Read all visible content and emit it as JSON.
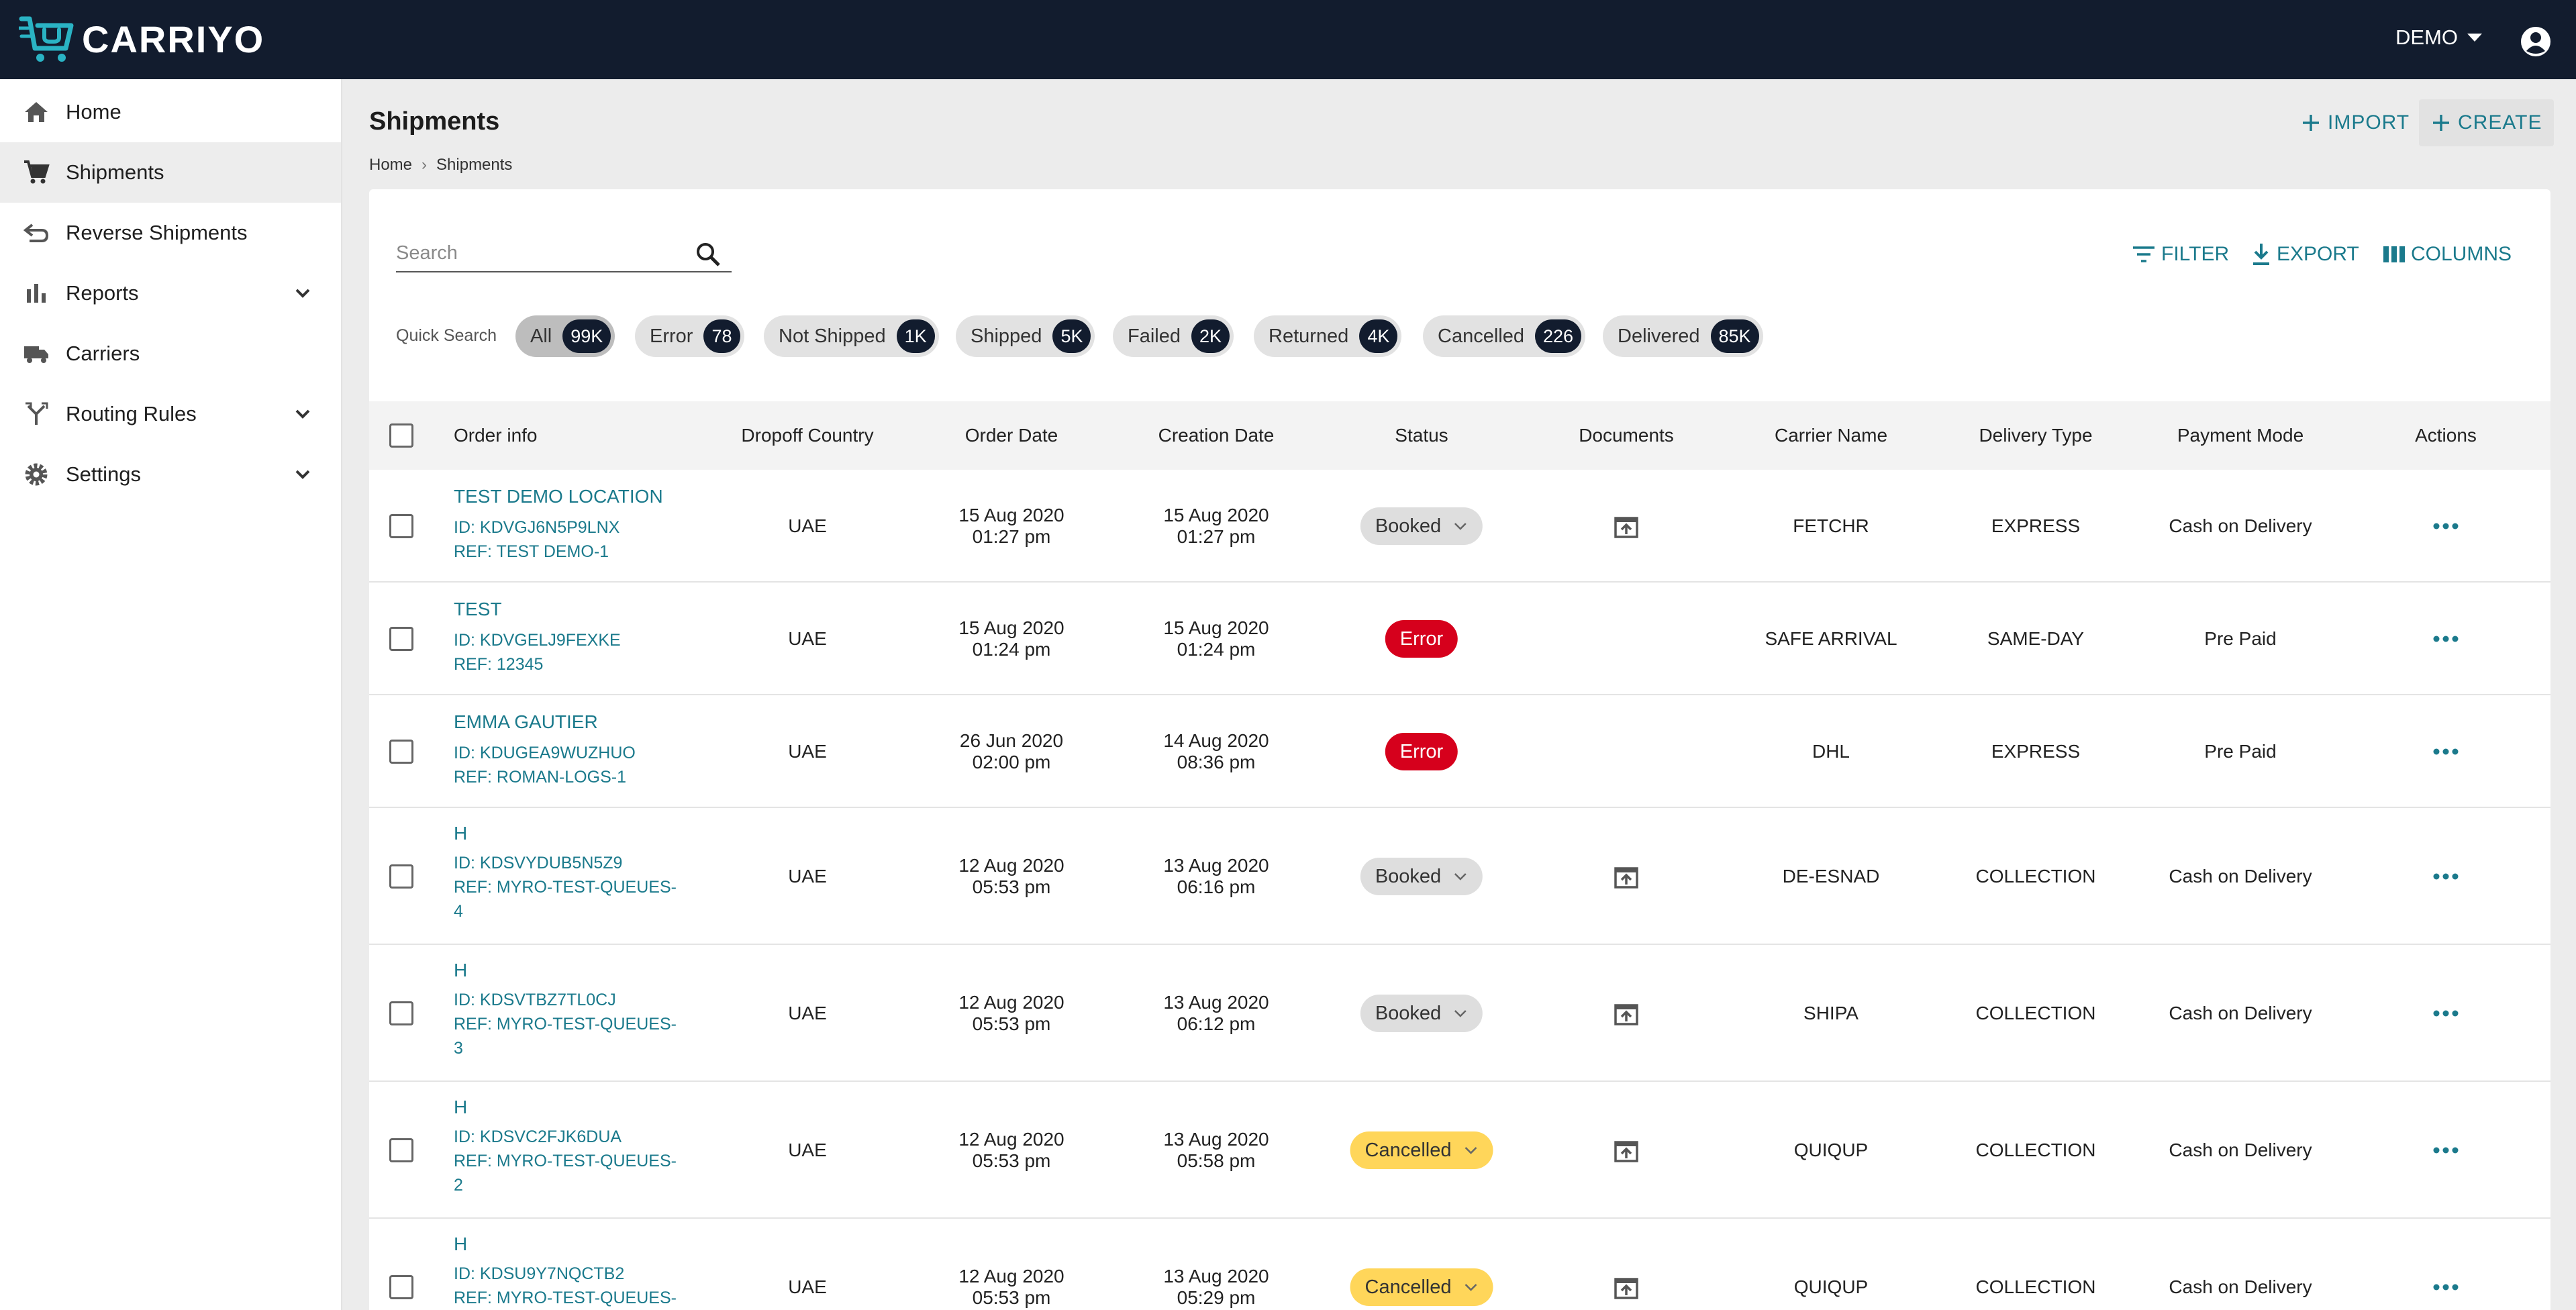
{
  "app": {
    "brand": "CARRIYO",
    "account": "DEMO"
  },
  "colors": {
    "topbar": "#121c2e",
    "accent": "#1b7a8c",
    "error": "#d6001c",
    "cancelled": "#ffd65a",
    "booked": "#dedede"
  },
  "sidebar": {
    "items": [
      {
        "label": "Home",
        "icon": "home-icon"
      },
      {
        "label": "Shipments",
        "icon": "cart-icon",
        "active": true
      },
      {
        "label": "Reverse Shipments",
        "icon": "reverse-icon"
      },
      {
        "label": "Reports",
        "icon": "bar-chart-icon",
        "expandable": true
      },
      {
        "label": "Carriers",
        "icon": "truck-icon"
      },
      {
        "label": "Routing Rules",
        "icon": "routing-icon",
        "expandable": true
      },
      {
        "label": "Settings",
        "icon": "gear-icon",
        "expandable": true
      }
    ]
  },
  "header": {
    "title": "Shipments",
    "breadcrumb": [
      "Home",
      "Shipments"
    ],
    "import_label": "IMPORT",
    "create_label": "CREATE"
  },
  "toolbar": {
    "search_placeholder": "Search",
    "filter_label": "FILTER",
    "export_label": "EXPORT",
    "columns_label": "COLUMNS"
  },
  "quick_search": {
    "label": "Quick Search",
    "chips": [
      {
        "label": "All",
        "count": "99K",
        "active": true
      },
      {
        "label": "Error",
        "count": "78"
      },
      {
        "label": "Not Shipped",
        "count": "1K"
      },
      {
        "label": "Shipped",
        "count": "5K"
      },
      {
        "label": "Failed",
        "count": "2K"
      },
      {
        "label": "Returned",
        "count": "4K"
      },
      {
        "label": "Cancelled",
        "count": "226"
      },
      {
        "label": "Delivered",
        "count": "85K"
      }
    ]
  },
  "table": {
    "columns": [
      "Order info",
      "Dropoff Country",
      "Order Date",
      "Creation Date",
      "Status",
      "Documents",
      "Carrier Name",
      "Delivery Type",
      "Payment Mode",
      "Actions"
    ],
    "rows": [
      {
        "name": "TEST DEMO LOCATION",
        "id": "ID: KDVGJ6N5P9LNX",
        "ref": "REF: TEST DEMO-1",
        "country": "UAE",
        "order_date": "15 Aug 2020",
        "order_time": "01:27 pm",
        "creation_date": "15 Aug 2020",
        "creation_time": "01:27 pm",
        "status": "Booked",
        "has_doc": true,
        "carrier": "FETCHR",
        "delivery": "EXPRESS",
        "payment": "Cash on Delivery"
      },
      {
        "name": "TEST",
        "id": "ID: KDVGELJ9FEXKE",
        "ref": "REF: 12345",
        "country": "UAE",
        "order_date": "15 Aug 2020",
        "order_time": "01:24 pm",
        "creation_date": "15 Aug 2020",
        "creation_time": "01:24 pm",
        "status": "Error",
        "has_doc": false,
        "carrier": "SAFE ARRIVAL",
        "delivery": "SAME-DAY",
        "payment": "Pre Paid"
      },
      {
        "name": "EMMA GAUTIER",
        "id": "ID: KDUGEA9WUZHUO",
        "ref": "REF: ROMAN-LOGS-1",
        "country": "UAE",
        "order_date": "26 Jun 2020",
        "order_time": "02:00 pm",
        "creation_date": "14 Aug 2020",
        "creation_time": "08:36 pm",
        "status": "Error",
        "has_doc": false,
        "carrier": "DHL",
        "delivery": "EXPRESS",
        "payment": "Pre Paid"
      },
      {
        "name": "H",
        "id": "ID: KDSVYDUB5N5Z9",
        "ref": "REF: MYRO-TEST-QUEUES-",
        "ref2": "4",
        "country": "UAE",
        "order_date": "12 Aug 2020",
        "order_time": "05:53 pm",
        "creation_date": "13 Aug 2020",
        "creation_time": "06:16 pm",
        "status": "Booked",
        "has_doc": true,
        "carrier": "DE-ESNAD",
        "delivery": "COLLECTION",
        "payment": "Cash on Delivery"
      },
      {
        "name": "H",
        "id": "ID: KDSVTBZ7TL0CJ",
        "ref": "REF: MYRO-TEST-QUEUES-",
        "ref2": "3",
        "country": "UAE",
        "order_date": "12 Aug 2020",
        "order_time": "05:53 pm",
        "creation_date": "13 Aug 2020",
        "creation_time": "06:12 pm",
        "status": "Booked",
        "has_doc": true,
        "carrier": "SHIPA",
        "delivery": "COLLECTION",
        "payment": "Cash on Delivery"
      },
      {
        "name": "H",
        "id": "ID: KDSVC2FJK6DUA",
        "ref": "REF: MYRO-TEST-QUEUES-",
        "ref2": "2",
        "country": "UAE",
        "order_date": "12 Aug 2020",
        "order_time": "05:53 pm",
        "creation_date": "13 Aug 2020",
        "creation_time": "05:58 pm",
        "status": "Cancelled",
        "has_doc": true,
        "carrier": "QUIQUP",
        "delivery": "COLLECTION",
        "payment": "Cash on Delivery"
      },
      {
        "name": "H",
        "id": "ID: KDSU9Y7NQCTB2",
        "ref": "REF: MYRO-TEST-QUEUES-",
        "country": "UAE",
        "order_date": "12 Aug 2020",
        "order_time": "05:53 pm",
        "creation_date": "13 Aug 2020",
        "creation_time": "05:29 pm",
        "status": "Cancelled",
        "has_doc": true,
        "carrier": "QUIQUP",
        "delivery": "COLLECTION",
        "payment": "Cash on Delivery"
      }
    ]
  }
}
